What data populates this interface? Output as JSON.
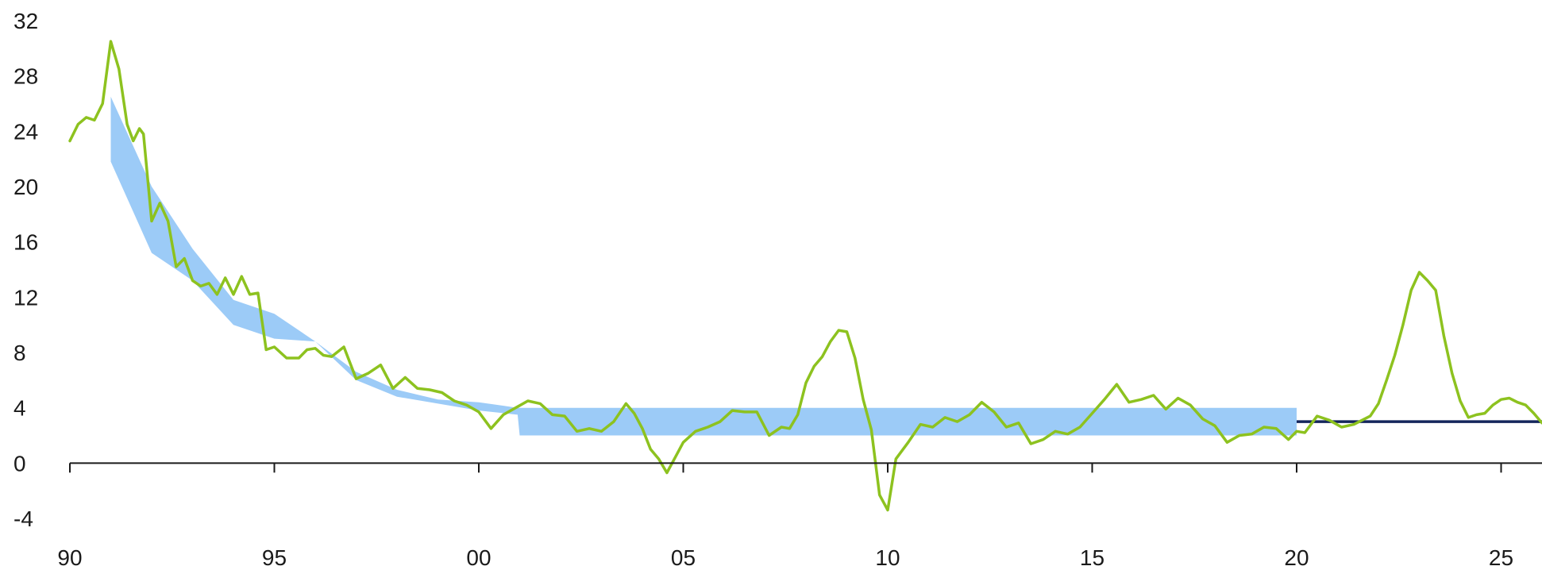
{
  "chart_data": {
    "type": "line",
    "title": "",
    "xlabel": "",
    "ylabel": "",
    "xlim": [
      1990,
      2026
    ],
    "ylim": [
      -4,
      32
    ],
    "grid": false,
    "legend": "none",
    "y_ticks": [
      -4,
      0,
      4,
      8,
      12,
      16,
      20,
      24,
      28,
      32
    ],
    "y_tick_labels": [
      "-4",
      "0",
      "4",
      "8",
      "12",
      "16",
      "20",
      "24",
      "28",
      "32"
    ],
    "x_ticks": [
      1990,
      1995,
      2000,
      2005,
      2010,
      2015,
      2020,
      2025
    ],
    "x_tick_labels": [
      "90",
      "95",
      "00",
      "05",
      "10",
      "15",
      "20",
      "25"
    ],
    "colors": {
      "inflation_line": "#8dc21f",
      "target_band": "#9ccbf7",
      "target_line": "#14265c",
      "axis": "#1a1a1a"
    },
    "series": [
      {
        "kind": "line",
        "x": [
          1990.0,
          1990.2,
          1990.4,
          1990.6,
          1990.8,
          1991.0,
          1991.2,
          1991.4,
          1991.55,
          1991.7,
          1991.8,
          1992.0,
          1992.2,
          1992.4,
          1992.6,
          1992.8,
          1993.0,
          1993.2,
          1993.4,
          1993.6,
          1993.8,
          1994.0,
          1994.2,
          1994.4,
          1994.6,
          1994.8,
          1995.0,
          1995.3,
          1995.6,
          1995.8,
          1996.0,
          1996.2,
          1996.4,
          1996.7,
          1997.0,
          1997.3,
          1997.6,
          1997.9,
          1998.2,
          1998.5,
          1998.8,
          1999.1,
          1999.4,
          1999.7,
          2000.0,
          2000.3,
          2000.6,
          2000.9,
          2001.2,
          2001.5,
          2001.8,
          2002.1,
          2002.4,
          2002.7,
          2003.0,
          2003.3,
          2003.6,
          2003.8,
          2004.0,
          2004.2,
          2004.4,
          2004.6,
          2004.8,
          2005.0,
          2005.3,
          2005.6,
          2005.9,
          2006.2,
          2006.5,
          2006.8,
          2007.1,
          2007.4,
          2007.6,
          2007.8,
          2008.0,
          2008.2,
          2008.4,
          2008.6,
          2008.8,
          2009.0,
          2009.2,
          2009.4,
          2009.6,
          2009.8,
          2010.0,
          2010.2,
          2010.5,
          2010.8,
          2011.1,
          2011.4,
          2011.7,
          2012.0,
          2012.3,
          2012.6,
          2012.9,
          2013.2,
          2013.5,
          2013.8,
          2014.1,
          2014.4,
          2014.7,
          2015.0,
          2015.3,
          2015.6,
          2015.9,
          2016.2,
          2016.5,
          2016.8,
          2017.1,
          2017.4,
          2017.7,
          2018.0,
          2018.3,
          2018.6,
          2018.9,
          2019.2,
          2019.5,
          2019.8,
          2020.0,
          2020.2,
          2020.5,
          2020.8,
          2021.1,
          2021.4,
          2021.6,
          2021.8,
          2022.0,
          2022.2,
          2022.4,
          2022.6,
          2022.8,
          2023.0,
          2023.2,
          2023.4,
          2023.6,
          2023.8,
          2024.0,
          2024.2,
          2024.4,
          2024.6,
          2024.8,
          2025.0,
          2025.2,
          2025.4,
          2025.6,
          2025.8,
          2026.0
        ],
        "values": [
          23.3,
          24.5,
          25.0,
          24.8,
          26.0,
          30.5,
          28.5,
          24.5,
          23.3,
          24.2,
          23.8,
          17.5,
          18.8,
          17.5,
          14.2,
          14.8,
          13.2,
          12.8,
          13.0,
          12.2,
          13.4,
          12.2,
          13.5,
          12.2,
          12.3,
          8.2,
          8.4,
          7.6,
          7.6,
          8.2,
          8.3,
          7.8,
          7.7,
          8.4,
          6.1,
          6.5,
          7.1,
          5.4,
          6.2,
          5.4,
          5.3,
          5.1,
          4.5,
          4.2,
          3.7,
          2.5,
          3.5,
          4.0,
          4.5,
          4.3,
          3.5,
          3.4,
          2.3,
          2.5,
          2.3,
          3.0,
          4.3,
          3.6,
          2.5,
          1.0,
          0.3,
          -0.7,
          0.4,
          1.5,
          2.3,
          2.6,
          3.0,
          3.8,
          3.7,
          3.7,
          2.0,
          2.6,
          2.5,
          3.5,
          5.8,
          7.0,
          7.7,
          8.8,
          9.6,
          9.5,
          7.6,
          4.6,
          2.4,
          -2.3,
          -3.4,
          0.3,
          1.5,
          2.8,
          2.6,
          3.3,
          3.0,
          3.5,
          4.4,
          3.7,
          2.6,
          2.9,
          1.4,
          1.7,
          2.3,
          2.1,
          2.6,
          3.6,
          4.6,
          5.7,
          4.4,
          4.6,
          4.9,
          3.9,
          4.7,
          4.2,
          3.2,
          2.7,
          1.5,
          2.0,
          2.1,
          2.6,
          2.5,
          1.7,
          2.3,
          2.2,
          3.4,
          3.1,
          2.6,
          2.8,
          3.1,
          3.4,
          4.3,
          6.0,
          7.8,
          10.0,
          12.5,
          13.8,
          13.2,
          12.5,
          9.2,
          6.5,
          4.5,
          3.3,
          3.5,
          3.6,
          4.2,
          4.6,
          4.7,
          4.4,
          4.2,
          3.6,
          2.9
        ]
      },
      {
        "kind": "band",
        "x": [
          1991.0,
          1992.0,
          1993.0,
          1994.0,
          1995.0,
          1996.0,
          1997.0,
          1998.0,
          1999.0,
          2000.0,
          2000.95,
          2001.0,
          2020.0
        ],
        "upper": [
          26.5,
          20.0,
          15.5,
          11.8,
          10.8,
          8.8,
          6.6,
          5.3,
          4.6,
          4.4,
          4.0,
          4.0,
          4.0
        ],
        "lower": [
          21.8,
          15.2,
          13.2,
          10.0,
          9.0,
          8.8,
          6.0,
          4.8,
          4.3,
          3.8,
          3.5,
          2.0,
          2.0
        ]
      },
      {
        "kind": "line",
        "x": [
          2020.0,
          2026.0
        ],
        "values": [
          3.0,
          3.0
        ]
      }
    ]
  }
}
